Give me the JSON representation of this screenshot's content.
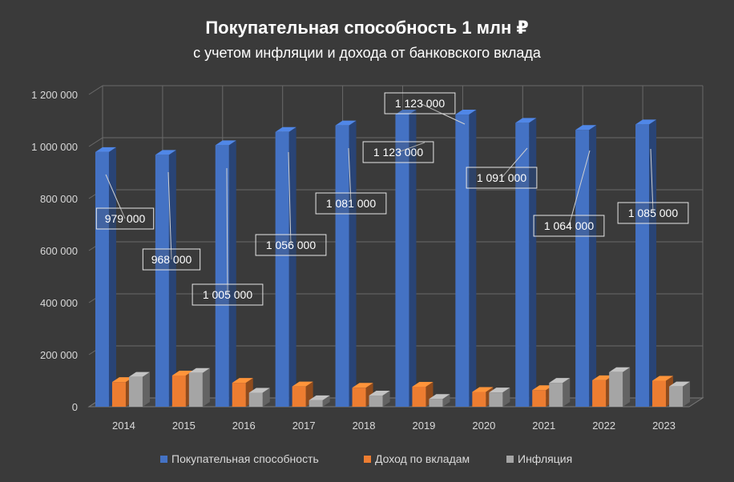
{
  "chart_data": {
    "type": "bar",
    "title": "Покупательная способность 1 млн ₽",
    "subtitle": "с учетом инфляции и дохода от банковского вклада",
    "categories": [
      "2014",
      "2015",
      "2016",
      "2017",
      "2018",
      "2019",
      "2020",
      "2021",
      "2022",
      "2023"
    ],
    "series": [
      {
        "name": "Покупательная способность",
        "color": "#4472c4",
        "values": [
          979000,
          968000,
          1005000,
          1056000,
          1081000,
          1123000,
          1123000,
          1091000,
          1064000,
          1085000
        ]
      },
      {
        "name": "Доход по вкладам",
        "color": "#ed7d31",
        "values": [
          95000,
          120000,
          92000,
          78000,
          73000,
          77000,
          57000,
          64000,
          102000,
          100000
        ]
      },
      {
        "name": "Инфляция",
        "color": "#a5a5a5",
        "values": [
          115000,
          130000,
          54000,
          25000,
          43000,
          30000,
          55000,
          92000,
          133000,
          78000
        ]
      }
    ],
    "data_labels": [
      "979 000",
      "968 000",
      "1 005 000",
      "1 056 000",
      "1 081 000",
      "1 123 000",
      "1 123 000",
      "1 091 000",
      "1 064 000",
      "1 085 000"
    ],
    "ylim": [
      0,
      1200000
    ],
    "yticks": [
      "0",
      "200 000",
      "400 000",
      "600 000",
      "800 000",
      "1 000 000",
      "1 200 000"
    ],
    "grid": true,
    "legend": "bottom"
  }
}
